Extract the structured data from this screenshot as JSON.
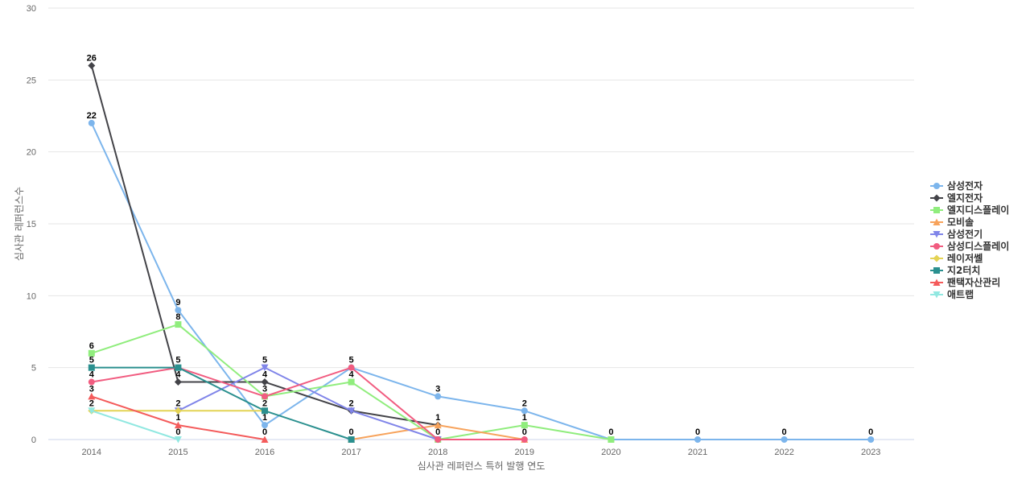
{
  "chart_data": {
    "type": "line",
    "xlabel": "심사관 레퍼런스 특허 발행 연도",
    "ylabel": "심사관 레퍼런스수",
    "ylim": [
      0,
      30
    ],
    "yticks": [
      0,
      5,
      10,
      15,
      20,
      25,
      30
    ],
    "grid": true,
    "legend_position": "right",
    "categories": [
      "2014",
      "2015",
      "2016",
      "2017",
      "2018",
      "2019",
      "2020",
      "2021",
      "2022",
      "2023"
    ],
    "series": [
      {
        "name": "삼성전자",
        "color": "#7cb5ec",
        "marker": "circle",
        "values": [
          22,
          9,
          1,
          5,
          3,
          2,
          0,
          0,
          0,
          0
        ]
      },
      {
        "name": "엘지전자",
        "color": "#434348",
        "marker": "diamond",
        "values": [
          26,
          4,
          4,
          2,
          1,
          null,
          null,
          null,
          null,
          null
        ]
      },
      {
        "name": "엘지디스플레이",
        "color": "#90ed7d",
        "marker": "square",
        "values": [
          6,
          8,
          3,
          4,
          0,
          1,
          0,
          null,
          null,
          null
        ]
      },
      {
        "name": "모비솔",
        "color": "#f7a35c",
        "marker": "triangle",
        "values": [
          null,
          null,
          null,
          0,
          1,
          0,
          null,
          null,
          null,
          null
        ]
      },
      {
        "name": "삼성전기",
        "color": "#8085e9",
        "marker": "triangle-down",
        "values": [
          null,
          2,
          5,
          2,
          0,
          null,
          null,
          null,
          null,
          null
        ]
      },
      {
        "name": "삼성디스플레이",
        "color": "#f15c80",
        "marker": "circle",
        "values": [
          4,
          5,
          3,
          5,
          0,
          0,
          null,
          null,
          null,
          null
        ]
      },
      {
        "name": "레이저쎌",
        "color": "#e4d354",
        "marker": "diamond",
        "values": [
          2,
          2,
          2,
          null,
          null,
          null,
          null,
          null,
          null,
          null
        ]
      },
      {
        "name": "지2터치",
        "color": "#2b908f",
        "marker": "square",
        "values": [
          5,
          5,
          2,
          0,
          null,
          null,
          null,
          null,
          null,
          null
        ]
      },
      {
        "name": "팬택자산관리",
        "color": "#f45b5b",
        "marker": "triangle",
        "values": [
          3,
          1,
          0,
          null,
          null,
          null,
          null,
          null,
          null,
          null
        ]
      },
      {
        "name": "애트랩",
        "color": "#91e8e1",
        "marker": "triangle-down",
        "values": [
          2,
          0,
          null,
          null,
          null,
          null,
          null,
          null,
          null,
          null
        ]
      }
    ],
    "data_labels": [
      {
        "x": "2014",
        "y": 26,
        "text": "26"
      },
      {
        "x": "2014",
        "y": 22,
        "text": "22"
      },
      {
        "x": "2014",
        "y": 6,
        "text": "6"
      },
      {
        "x": "2014",
        "y": 5,
        "text": "5"
      },
      {
        "x": "2014",
        "y": 4,
        "text": "4"
      },
      {
        "x": "2014",
        "y": 3,
        "text": "3"
      },
      {
        "x": "2014",
        "y": 2,
        "text": "2"
      },
      {
        "x": "2015",
        "y": 9,
        "text": "9"
      },
      {
        "x": "2015",
        "y": 8,
        "text": "8"
      },
      {
        "x": "2015",
        "y": 5,
        "text": "5"
      },
      {
        "x": "2015",
        "y": 4,
        "text": "4"
      },
      {
        "x": "2015",
        "y": 2,
        "text": "2"
      },
      {
        "x": "2015",
        "y": 1,
        "text": "1"
      },
      {
        "x": "2015",
        "y": 0,
        "text": "0"
      },
      {
        "x": "2016",
        "y": 5,
        "text": "5"
      },
      {
        "x": "2016",
        "y": 4,
        "text": "4"
      },
      {
        "x": "2016",
        "y": 3,
        "text": "3"
      },
      {
        "x": "2016",
        "y": 2,
        "text": "2"
      },
      {
        "x": "2016",
        "y": 1,
        "text": "1"
      },
      {
        "x": "2016",
        "y": 0,
        "text": "0"
      },
      {
        "x": "2017",
        "y": 5,
        "text": "5"
      },
      {
        "x": "2017",
        "y": 4,
        "text": "4"
      },
      {
        "x": "2017",
        "y": 2,
        "text": "2"
      },
      {
        "x": "2017",
        "y": 0,
        "text": "0"
      },
      {
        "x": "2018",
        "y": 3,
        "text": "3"
      },
      {
        "x": "2018",
        "y": 1,
        "text": "1"
      },
      {
        "x": "2018",
        "y": 0,
        "text": "0"
      },
      {
        "x": "2019",
        "y": 2,
        "text": "2"
      },
      {
        "x": "2019",
        "y": 1,
        "text": "1"
      },
      {
        "x": "2019",
        "y": 0,
        "text": "0"
      },
      {
        "x": "2020",
        "y": 0,
        "text": "0"
      },
      {
        "x": "2021",
        "y": 0,
        "text": "0"
      },
      {
        "x": "2022",
        "y": 0,
        "text": "0"
      },
      {
        "x": "2023",
        "y": 0,
        "text": "0"
      }
    ]
  }
}
